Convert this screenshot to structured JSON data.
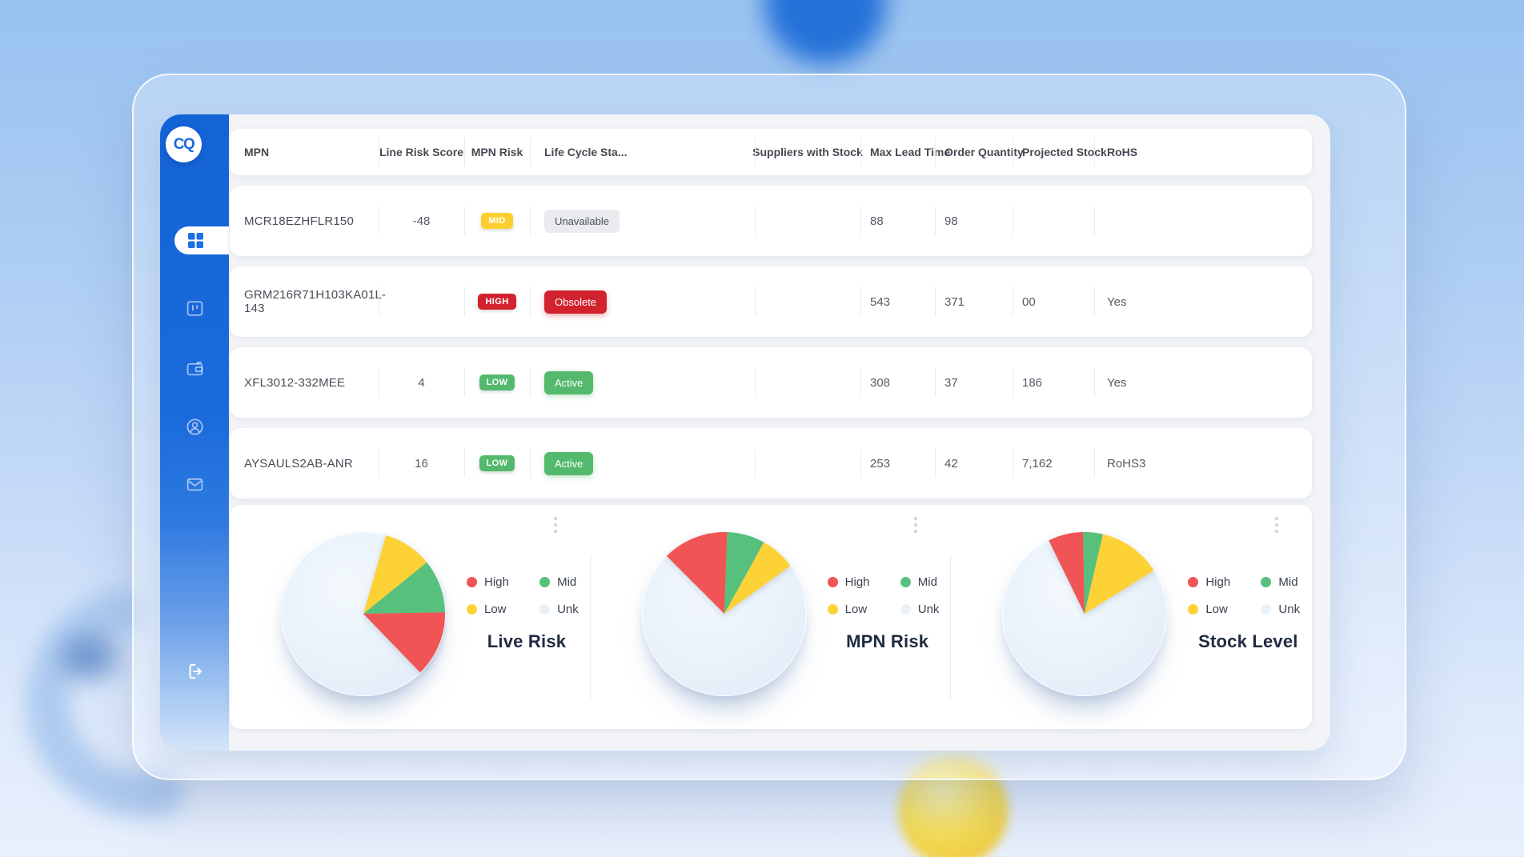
{
  "app": {
    "logo_text": "CQ"
  },
  "sidebar": {
    "icons": [
      "dashboard-grid",
      "kanban-board",
      "wallet",
      "user",
      "mail",
      "logout"
    ]
  },
  "table": {
    "columns": [
      {
        "key": "mpn",
        "label": "MPN"
      },
      {
        "key": "line_risk_score",
        "label": "Line Risk Score"
      },
      {
        "key": "mpn_risk",
        "label": "MPN Risk"
      },
      {
        "key": "life_cycle_status",
        "label": "Life Cycle Sta..."
      },
      {
        "key": "suppliers_with_stock",
        "label": "Suppliers with Stock"
      },
      {
        "key": "max_lead_time",
        "label": "Max Lead Time"
      },
      {
        "key": "order_quantity",
        "label": "Order Quantity"
      },
      {
        "key": "projected_stock",
        "label": "Projected Stock"
      },
      {
        "key": "rohs",
        "label": "RoHS"
      }
    ],
    "rows": [
      {
        "mpn": "MCR18EZHFLR150",
        "line_risk_score": "-48",
        "mpn_risk": {
          "text": "MID",
          "badge": "risk",
          "level": "mid"
        },
        "life_cycle_status": {
          "text": "Unavailable",
          "badge": "status",
          "level": "neutral"
        },
        "suppliers_with_stock": "",
        "max_lead_time": "88",
        "order_quantity": "98",
        "projected_stock": "",
        "rohs": ""
      },
      {
        "mpn": "GRM216R71H103KA01L-143",
        "line_risk_score": "",
        "mpn_risk": {
          "text": "HIGH",
          "badge": "risk",
          "level": "high"
        },
        "life_cycle_status": {
          "text": "Obsolete",
          "badge": "status",
          "level": "danger"
        },
        "suppliers_with_stock": "",
        "max_lead_time": "543",
        "order_quantity": "371",
        "projected_stock": "00",
        "rohs": "Yes"
      },
      {
        "mpn": "XFL3012-332MEE",
        "line_risk_score": "4",
        "mpn_risk": {
          "text": "LOW",
          "badge": "risk",
          "level": "low"
        },
        "life_cycle_status": {
          "text": "Active",
          "badge": "status",
          "level": "success"
        },
        "suppliers_with_stock": "",
        "max_lead_time": "308",
        "order_quantity": "37",
        "projected_stock": "186",
        "rohs": "Yes"
      },
      {
        "mpn": "AYSAULS2AB-ANR",
        "line_risk_score": "16",
        "mpn_risk": {
          "text": "LOW",
          "badge": "risk",
          "level": "low"
        },
        "life_cycle_status": {
          "text": "Active",
          "badge": "status",
          "level": "success"
        },
        "suppliers_with_stock": "",
        "max_lead_time": "253",
        "order_quantity": "42",
        "projected_stock": "7,162",
        "rohs": "RoHS3"
      }
    ]
  },
  "chart_data": [
    {
      "type": "pie",
      "title": "Live Risk",
      "legend": [
        {
          "label": "High",
          "color": "high"
        },
        {
          "label": "Mid",
          "color": "mid"
        },
        {
          "label": "Low",
          "color": "low"
        },
        {
          "label": "Unk",
          "color": "unk"
        }
      ],
      "slices": [
        {
          "label": "Low",
          "color": "low",
          "start_deg": 16,
          "end_deg": 51,
          "percent": 9.7
        },
        {
          "label": "Mid",
          "color": "mid",
          "start_deg": 51,
          "end_deg": 89,
          "percent": 10.6
        },
        {
          "label": "High",
          "color": "high",
          "start_deg": 89,
          "end_deg": 136,
          "percent": 13.1
        },
        {
          "label": "Unk",
          "color": "unk",
          "start_deg": 136,
          "end_deg": 376,
          "percent": 66.7
        }
      ]
    },
    {
      "type": "pie",
      "title": "MPN Risk",
      "legend": [
        {
          "label": "High",
          "color": "high"
        },
        {
          "label": "Mid",
          "color": "mid"
        },
        {
          "label": "Low",
          "color": "low"
        },
        {
          "label": "Unk",
          "color": "unk"
        }
      ],
      "slices": [
        {
          "label": "High",
          "color": "high",
          "start_deg": -45,
          "end_deg": 2,
          "percent": 13.1
        },
        {
          "label": "Mid",
          "color": "mid",
          "start_deg": 2,
          "end_deg": 29,
          "percent": 7.5
        },
        {
          "label": "Low",
          "color": "low",
          "start_deg": 29,
          "end_deg": 54,
          "percent": 6.9
        },
        {
          "label": "Unk",
          "color": "unk",
          "start_deg": 54,
          "end_deg": 315,
          "percent": 72.5
        }
      ]
    },
    {
      "type": "pie",
      "title": "Stock Level",
      "legend": [
        {
          "label": "High",
          "color": "high"
        },
        {
          "label": "Mid",
          "color": "mid"
        },
        {
          "label": "Low",
          "color": "low"
        },
        {
          "label": "Unk",
          "color": "unk"
        }
      ],
      "slices": [
        {
          "label": "High",
          "color": "high",
          "start_deg": -26,
          "end_deg": -1,
          "percent": 6.9
        },
        {
          "label": "Mid",
          "color": "mid",
          "start_deg": -1,
          "end_deg": 13,
          "percent": 3.9
        },
        {
          "label": "Low",
          "color": "low",
          "start_deg": 13,
          "end_deg": 58,
          "percent": 12.5
        },
        {
          "label": "Unk",
          "color": "unk",
          "start_deg": 58,
          "end_deg": 334,
          "percent": 76.7
        }
      ]
    }
  ],
  "colors": {
    "high": "#f15454",
    "mid": "#57c07c",
    "low": "#fdd237",
    "unk": "#e9f1f9",
    "accent": "#1a6bdb",
    "badge_high": "#d2222e",
    "badge_mid": "#fccf2e",
    "badge_low": "#54b96d"
  }
}
